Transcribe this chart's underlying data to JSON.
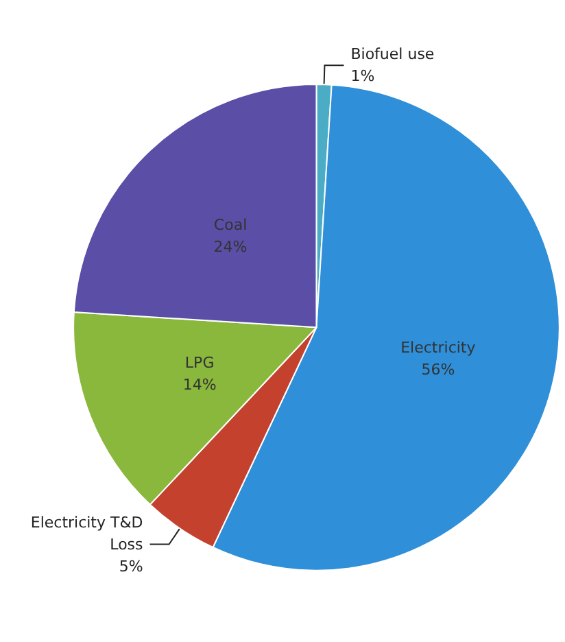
{
  "chart_data": {
    "type": "pie",
    "categories": [
      "Biofuel use",
      "Electricity",
      "Electricity T&D Loss",
      "LPG",
      "Coal"
    ],
    "values": [
      1,
      56,
      5,
      14,
      24
    ],
    "value_labels": [
      "1%",
      "56%",
      "5%",
      "14%",
      "24%"
    ],
    "colors": [
      "#4bacc6",
      "#2f8fd8",
      "#c4412e",
      "#8ab83c",
      "#5a4ea6"
    ]
  }
}
